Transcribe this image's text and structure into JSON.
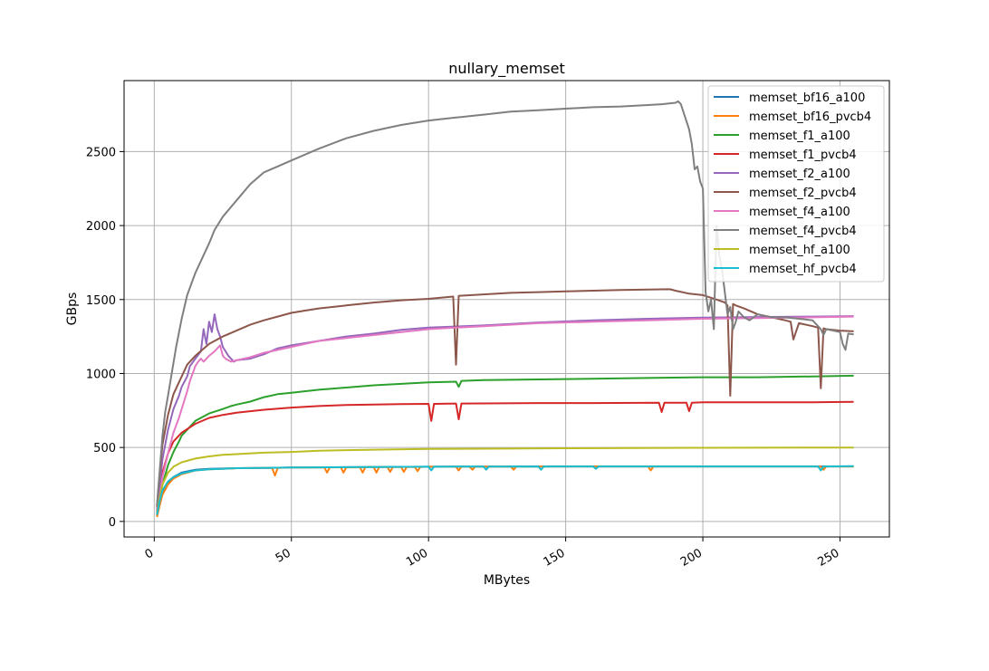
{
  "chart_data": {
    "type": "line",
    "title": "nullary_memset",
    "xlabel": "MBytes",
    "ylabel": "GBps",
    "xlim": [
      -11,
      268
    ],
    "ylim": [
      -105,
      2980
    ],
    "xticks": [
      0,
      50,
      100,
      150,
      200,
      250
    ],
    "yticks": [
      0,
      500,
      1000,
      1500,
      2000,
      2500
    ],
    "grid": true,
    "legend_position": "top-right",
    "series": [
      {
        "name": "memset_bf16_a100",
        "color": "#1f77b4",
        "x": [
          1,
          2,
          3,
          5,
          7,
          10,
          15,
          20,
          25,
          30,
          40,
          50,
          60,
          80,
          100,
          120,
          150,
          200,
          255
        ],
        "y": [
          40,
          120,
          190,
          260,
          300,
          330,
          350,
          355,
          358,
          360,
          362,
          365,
          366,
          368,
          370,
          371,
          372,
          372,
          372
        ]
      },
      {
        "name": "memset_bf16_pvcb4",
        "color": "#ff7f0e",
        "x": [
          1,
          2,
          3,
          5,
          7,
          10,
          15,
          20,
          25,
          30,
          40,
          43,
          44,
          45,
          50,
          62,
          63,
          64,
          68,
          69,
          70,
          75,
          76,
          77,
          80,
          81,
          82,
          85,
          86,
          87,
          90,
          91,
          92,
          95,
          96,
          97,
          100,
          110,
          111,
          112,
          115,
          116,
          117,
          130,
          131,
          132,
          150,
          180,
          181,
          182,
          200,
          243,
          244,
          245,
          255
        ],
        "y": [
          30,
          110,
          180,
          250,
          290,
          320,
          345,
          352,
          356,
          360,
          362,
          362,
          310,
          362,
          365,
          366,
          330,
          366,
          366,
          330,
          366,
          366,
          330,
          368,
          368,
          330,
          368,
          368,
          335,
          368,
          368,
          335,
          368,
          368,
          340,
          368,
          370,
          370,
          345,
          370,
          370,
          350,
          370,
          371,
          350,
          371,
          372,
          372,
          345,
          372,
          372,
          372,
          350,
          372,
          372
        ]
      },
      {
        "name": "memset_f1_a100",
        "color": "#2ca02c",
        "x": [
          1,
          2,
          3,
          5,
          7,
          9,
          10,
          12,
          15,
          20,
          25,
          28,
          30,
          35,
          40,
          45,
          50,
          60,
          70,
          80,
          90,
          100,
          110,
          111,
          112,
          120,
          140,
          160,
          180,
          200,
          220,
          240,
          255
        ],
        "y": [
          50,
          150,
          250,
          380,
          470,
          540,
          580,
          620,
          680,
          730,
          760,
          780,
          790,
          810,
          840,
          860,
          870,
          890,
          905,
          920,
          930,
          940,
          945,
          910,
          950,
          955,
          960,
          965,
          970,
          975,
          975,
          980,
          985
        ]
      },
      {
        "name": "memset_f1_pvcb4",
        "color": "#d62728",
        "x": [
          1,
          2,
          3,
          5,
          7,
          10,
          15,
          20,
          25,
          30,
          40,
          50,
          60,
          70,
          80,
          90,
          100,
          101,
          102,
          110,
          111,
          112,
          120,
          140,
          160,
          184,
          185,
          186,
          194,
          195,
          196,
          200,
          220,
          240,
          255
        ],
        "y": [
          60,
          200,
          330,
          460,
          540,
          600,
          660,
          700,
          720,
          735,
          755,
          770,
          780,
          787,
          790,
          793,
          795,
          680,
          795,
          797,
          690,
          797,
          798,
          800,
          800,
          802,
          740,
          802,
          803,
          745,
          803,
          805,
          805,
          806,
          808
        ]
      },
      {
        "name": "memset_f2_a100",
        "color": "#9467bd",
        "x": [
          1,
          2,
          3,
          5,
          7,
          9,
          10,
          12,
          13,
          15,
          17,
          18,
          19,
          20,
          21,
          22,
          23,
          24,
          25,
          26,
          27,
          28,
          29,
          30,
          35,
          40,
          45,
          50,
          60,
          70,
          80,
          90,
          100,
          120,
          140,
          160,
          180,
          200,
          220,
          240,
          255
        ],
        "y": [
          80,
          250,
          420,
          620,
          760,
          850,
          910,
          980,
          1050,
          1100,
          1150,
          1300,
          1200,
          1350,
          1280,
          1400,
          1300,
          1250,
          1180,
          1150,
          1120,
          1100,
          1080,
          1090,
          1100,
          1130,
          1170,
          1190,
          1220,
          1250,
          1270,
          1295,
          1310,
          1325,
          1345,
          1360,
          1370,
          1378,
          1382,
          1385,
          1388
        ]
      },
      {
        "name": "memset_f2_pvcb4",
        "color": "#8c564b",
        "x": [
          1,
          2,
          3,
          5,
          7,
          10,
          12,
          15,
          20,
          25,
          30,
          35,
          40,
          45,
          50,
          55,
          60,
          70,
          80,
          90,
          100,
          109,
          110,
          111,
          120,
          130,
          140,
          150,
          160,
          170,
          180,
          188,
          190,
          195,
          200,
          205,
          208,
          209,
          210,
          211,
          212,
          215,
          220,
          225,
          230,
          232,
          233,
          235,
          240,
          242,
          243,
          244,
          245,
          250,
          255
        ],
        "y": [
          100,
          330,
          520,
          720,
          860,
          980,
          1060,
          1120,
          1200,
          1250,
          1290,
          1330,
          1360,
          1385,
          1410,
          1425,
          1440,
          1460,
          1480,
          1495,
          1505,
          1520,
          1060,
          1525,
          1535,
          1545,
          1550,
          1555,
          1560,
          1565,
          1568,
          1570,
          1560,
          1540,
          1530,
          1500,
          1480,
          1460,
          850,
          1470,
          1460,
          1440,
          1400,
          1380,
          1360,
          1350,
          1230,
          1340,
          1320,
          1310,
          900,
          1305,
          1300,
          1290,
          1285
        ]
      },
      {
        "name": "memset_f4_a100",
        "color": "#e377c2",
        "x": [
          1,
          2,
          3,
          5,
          7,
          9,
          10,
          12,
          13,
          14,
          15,
          16,
          17,
          18,
          20,
          22,
          24,
          25,
          26,
          28,
          30,
          35,
          40,
          50,
          60,
          70,
          80,
          90,
          100,
          110,
          120,
          140,
          160,
          180,
          200,
          220,
          240,
          255
        ],
        "y": [
          50,
          170,
          300,
          460,
          600,
          700,
          760,
          880,
          950,
          1000,
          1050,
          1080,
          1100,
          1080,
          1120,
          1150,
          1190,
          1120,
          1100,
          1080,
          1090,
          1110,
          1140,
          1180,
          1220,
          1240,
          1260,
          1280,
          1300,
          1310,
          1320,
          1340,
          1350,
          1360,
          1370,
          1375,
          1380,
          1385
        ]
      },
      {
        "name": "memset_f4_pvcb4",
        "color": "#7f7f7f",
        "x": [
          1,
          2,
          3,
          4,
          5,
          6,
          7,
          8,
          10,
          12,
          15,
          18,
          20,
          22,
          25,
          30,
          35,
          40,
          45,
          50,
          55,
          60,
          70,
          80,
          90,
          100,
          110,
          120,
          130,
          140,
          150,
          160,
          170,
          180,
          185,
          190,
          191,
          192,
          195,
          196,
          197,
          198,
          199,
          200,
          201,
          202,
          203,
          204,
          205,
          206,
          207,
          208,
          209,
          210,
          211,
          212,
          213,
          215,
          217,
          220,
          225,
          230,
          235,
          240,
          243,
          244,
          245,
          250,
          251,
          252,
          253,
          255
        ],
        "y": [
          110,
          350,
          580,
          740,
          850,
          960,
          1070,
          1180,
          1370,
          1530,
          1680,
          1800,
          1880,
          1970,
          2060,
          2170,
          2280,
          2360,
          2400,
          2440,
          2480,
          2520,
          2590,
          2640,
          2680,
          2710,
          2730,
          2750,
          2770,
          2780,
          2790,
          2800,
          2805,
          2815,
          2820,
          2830,
          2840,
          2820,
          2650,
          2550,
          2380,
          2400,
          2300,
          2250,
          1550,
          1420,
          1500,
          1300,
          2000,
          1800,
          1700,
          1550,
          1400,
          1450,
          1300,
          1350,
          1420,
          1380,
          1360,
          1400,
          1380,
          1380,
          1370,
          1360,
          1300,
          1260,
          1300,
          1280,
          1200,
          1160,
          1270,
          1265
        ]
      },
      {
        "name": "memset_hf_a100",
        "color": "#bcbd22",
        "x": [
          1,
          2,
          3,
          5,
          7,
          10,
          15,
          20,
          25,
          30,
          40,
          50,
          60,
          70,
          80,
          100,
          120,
          150,
          200,
          255
        ],
        "y": [
          50,
          160,
          250,
          330,
          370,
          400,
          425,
          440,
          450,
          455,
          465,
          470,
          478,
          482,
          485,
          490,
          492,
          495,
          498,
          500
        ]
      },
      {
        "name": "memset_hf_pvcb4",
        "color": "#17becf",
        "x": [
          1,
          2,
          3,
          5,
          7,
          10,
          15,
          20,
          25,
          30,
          40,
          50,
          60,
          100,
          101,
          102,
          120,
          121,
          122,
          140,
          141,
          142,
          160,
          161,
          162,
          200,
          242,
          243,
          244,
          255
        ],
        "y": [
          45,
          140,
          210,
          270,
          300,
          325,
          345,
          352,
          356,
          360,
          362,
          365,
          366,
          370,
          345,
          370,
          371,
          350,
          371,
          372,
          350,
          372,
          372,
          355,
          372,
          372,
          372,
          345,
          372,
          374
        ]
      }
    ]
  }
}
